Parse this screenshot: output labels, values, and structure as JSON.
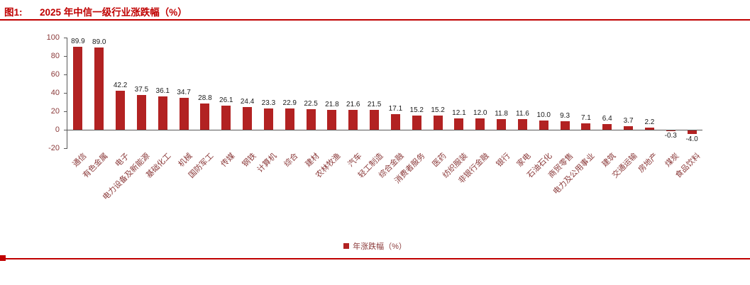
{
  "figure": {
    "tag": "图1:",
    "title": "2025 年中信一级行业涨跌幅（%）"
  },
  "chart_data": {
    "type": "bar",
    "title": "2025 年中信一级行业涨跌幅（%）",
    "categories": [
      "通信",
      "有色金属",
      "电子",
      "电力设备及新能源",
      "基础化工",
      "机械",
      "国防军工",
      "传媒",
      "钢铁",
      "计算机",
      "综合",
      "建材",
      "农林牧渔",
      "汽车",
      "轻工制造",
      "综合金融",
      "消费者服务",
      "医药",
      "纺织服装",
      "非银行金融",
      "银行",
      "家电",
      "石油石化",
      "商贸零售",
      "电力及公用事业",
      "建筑",
      "交通运输",
      "房地产",
      "煤炭",
      "食品饮料"
    ],
    "values": [
      89.9,
      89.0,
      42.2,
      37.5,
      36.1,
      34.7,
      28.8,
      26.1,
      24.4,
      23.3,
      22.9,
      22.5,
      21.8,
      21.6,
      21.5,
      17.1,
      15.2,
      15.2,
      12.1,
      12.0,
      11.8,
      11.6,
      10.0,
      9.3,
      7.1,
      6.4,
      3.7,
      2.2,
      -0.3,
      -4.0
    ],
    "xlabel": "",
    "ylabel": "",
    "ylim": [
      -20,
      100
    ],
    "yticks": [
      100,
      80,
      60,
      40,
      20,
      0,
      -20
    ],
    "grid": false,
    "legend": [
      "年涨跌幅（%）"
    ],
    "legend_position": "bottom",
    "colors": {
      "bar": "#b22222",
      "accent": "#c00000",
      "axis_label": "#8b3a3a",
      "value_label": "#1a1a1a"
    }
  }
}
